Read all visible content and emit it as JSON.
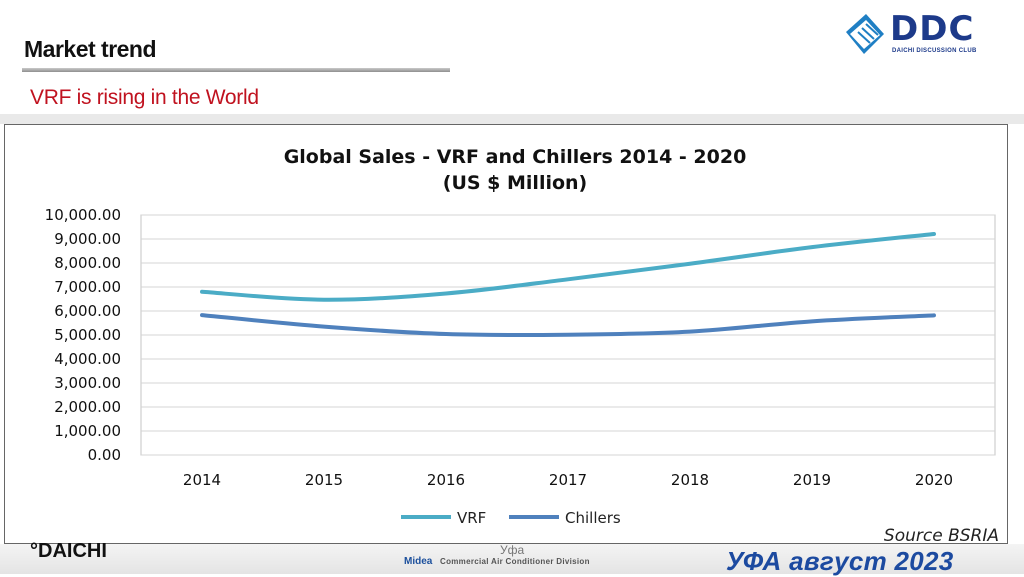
{
  "header": {
    "title": "Market trend",
    "subtitle": "VRF is rising in the World"
  },
  "logo": {
    "text": "DDC",
    "tagline": "DAICHI DISCUSSION CLUB"
  },
  "footer": {
    "brand": "°DAICHI",
    "center_text": "Уфа",
    "midea_brand": "Midea",
    "midea_division": "Commercial Air Conditioner Division",
    "event": "УФА август 2023"
  },
  "colors": {
    "vrf": "#4bacc6",
    "chillers": "#4f81bd",
    "title_red": "#c0121f",
    "event_blue": "#1c4aa0"
  },
  "chart_data": {
    "type": "line",
    "title": "Global Sales - VRF and Chillers 2014 - 2020",
    "subtitle": "(US $ Million)",
    "categories": [
      "2014",
      "2015",
      "2016",
      "2017",
      "2018",
      "2019",
      "2020"
    ],
    "series": [
      {
        "name": "VRF",
        "values": [
          6800,
          6470,
          6730,
          7320,
          7970,
          8660,
          9210
        ]
      },
      {
        "name": "Chillers",
        "values": [
          5830,
          5350,
          5040,
          5010,
          5140,
          5570,
          5820
        ]
      }
    ],
    "ylim": [
      0,
      10000
    ],
    "yticks": [
      "0.00",
      "1,000.00",
      "2,000.00",
      "3,000.00",
      "4,000.00",
      "5,000.00",
      "6,000.00",
      "7,000.00",
      "8,000.00",
      "9,000.00",
      "10,000.00"
    ],
    "grid": true,
    "legend": "bottom",
    "source": "Source BSRIA"
  }
}
